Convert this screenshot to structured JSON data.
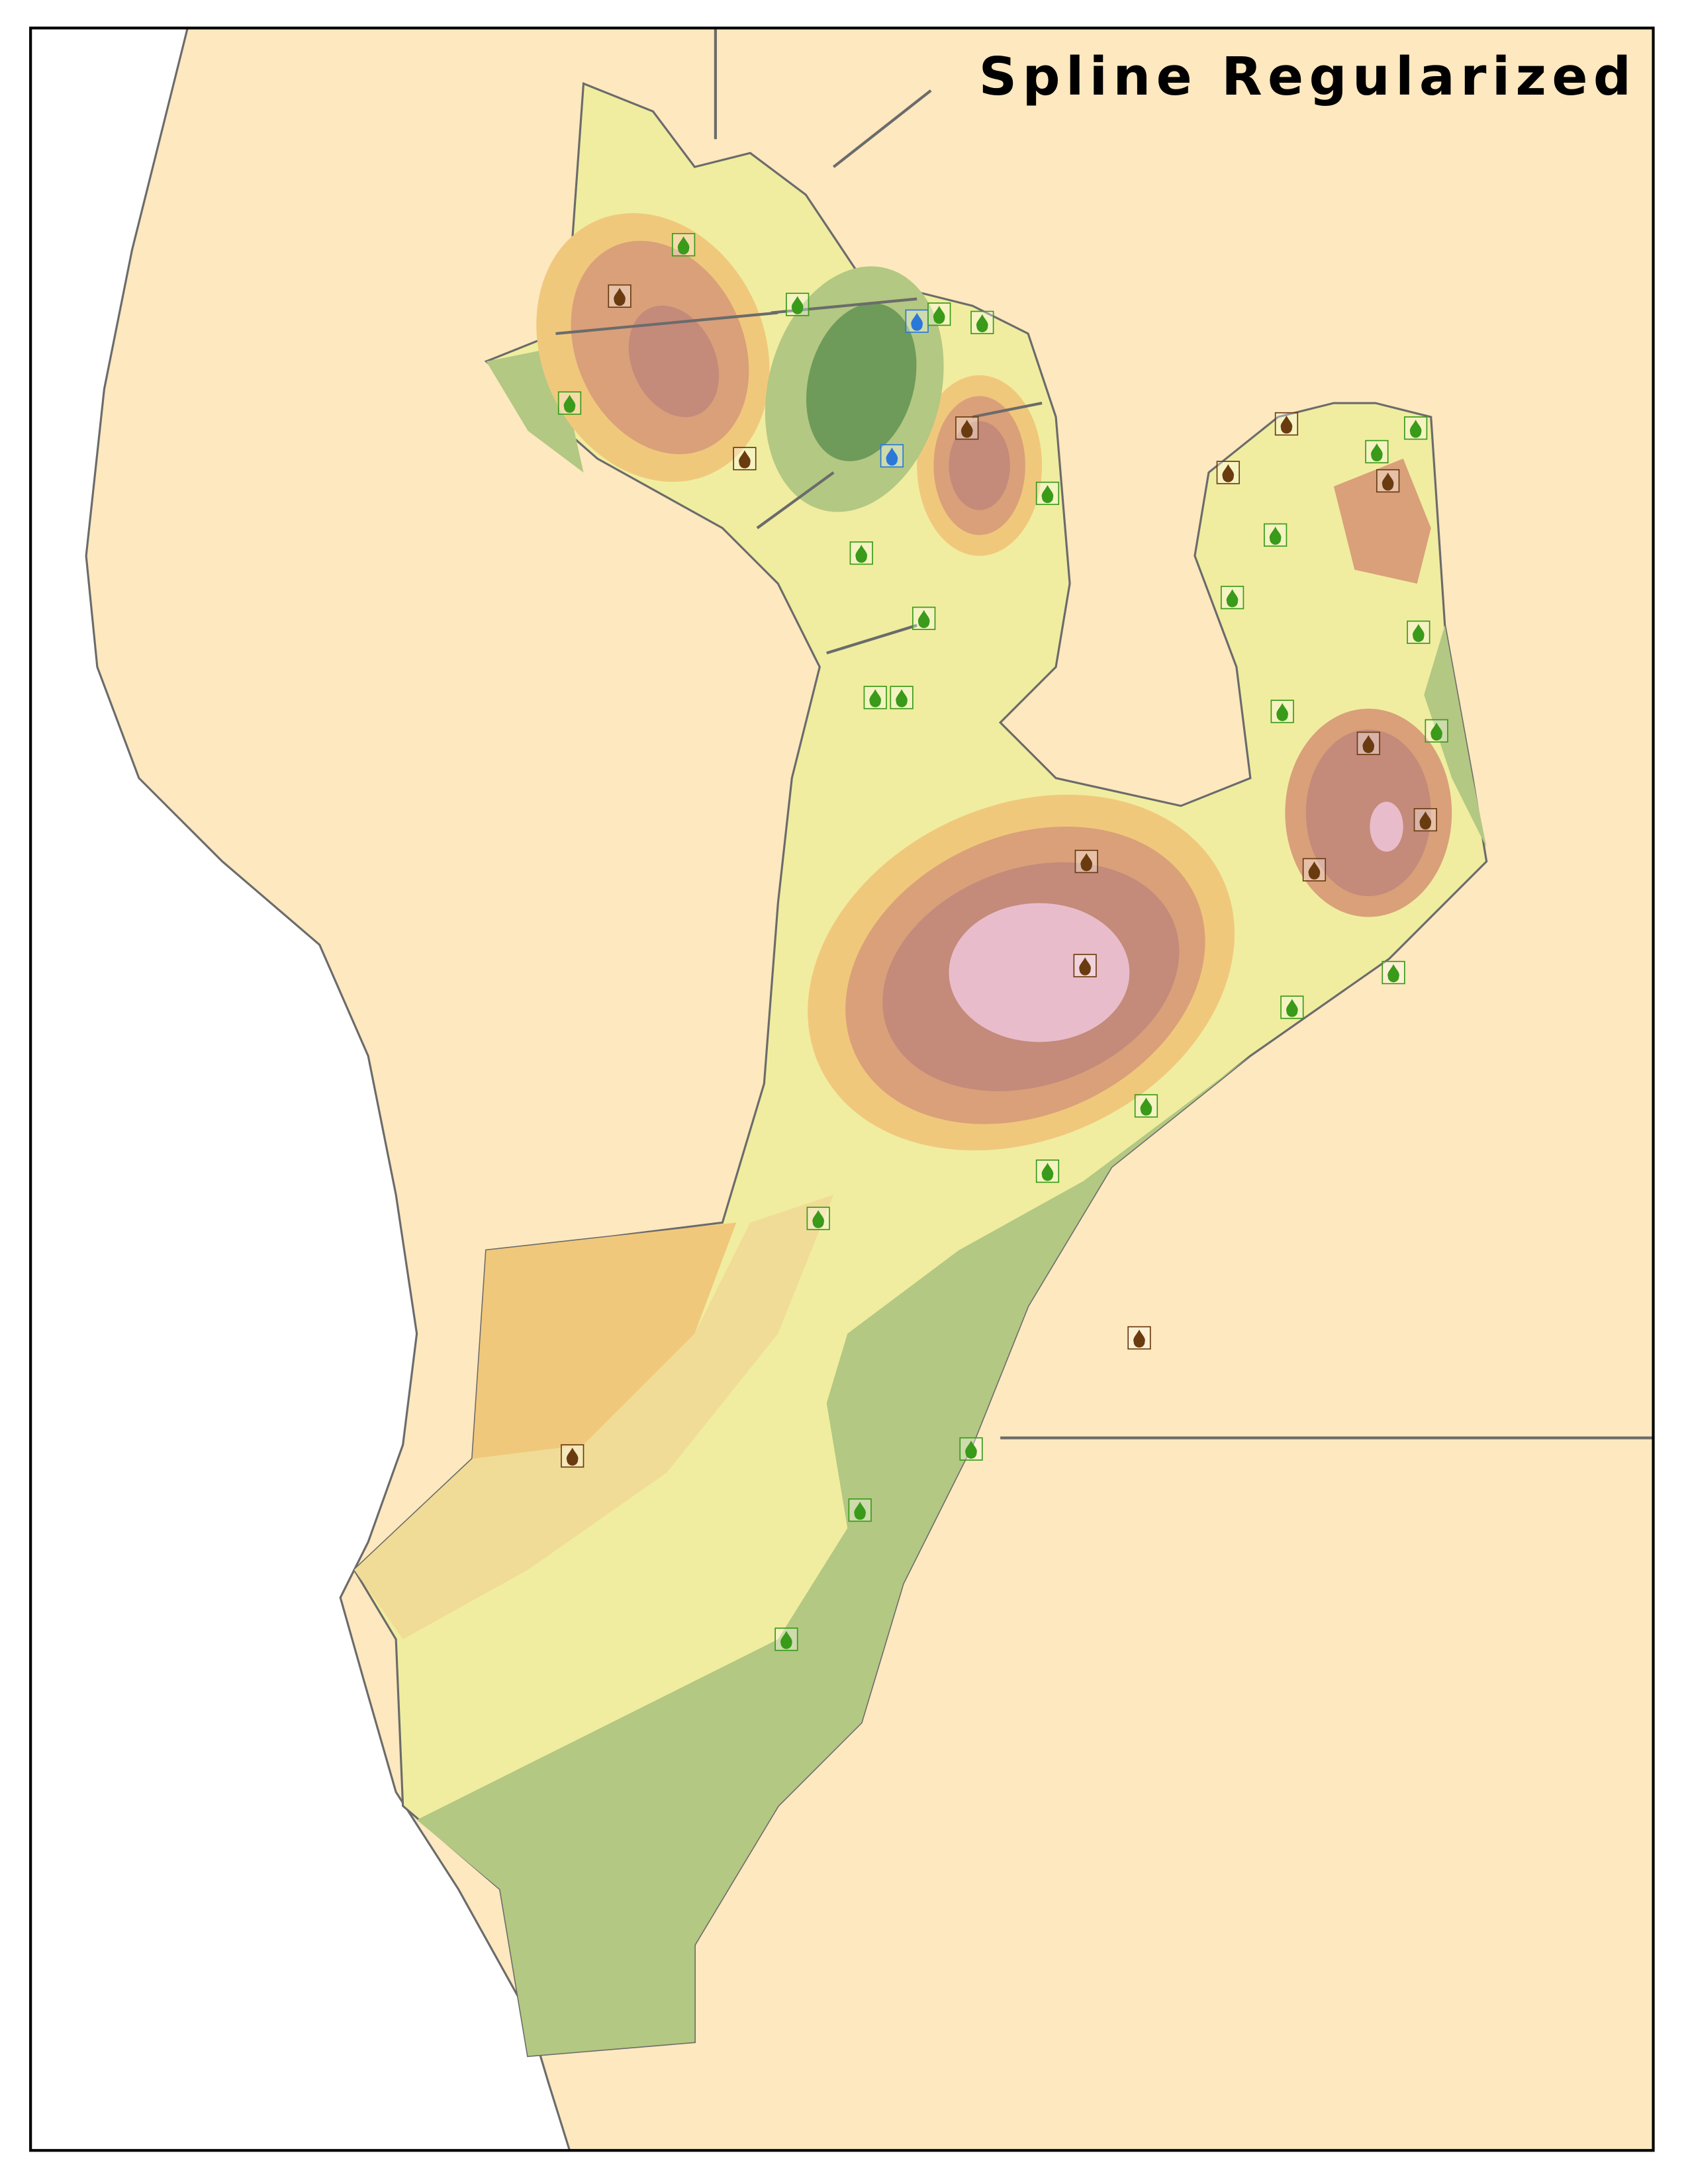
{
  "title": "Spline Regularized"
}
